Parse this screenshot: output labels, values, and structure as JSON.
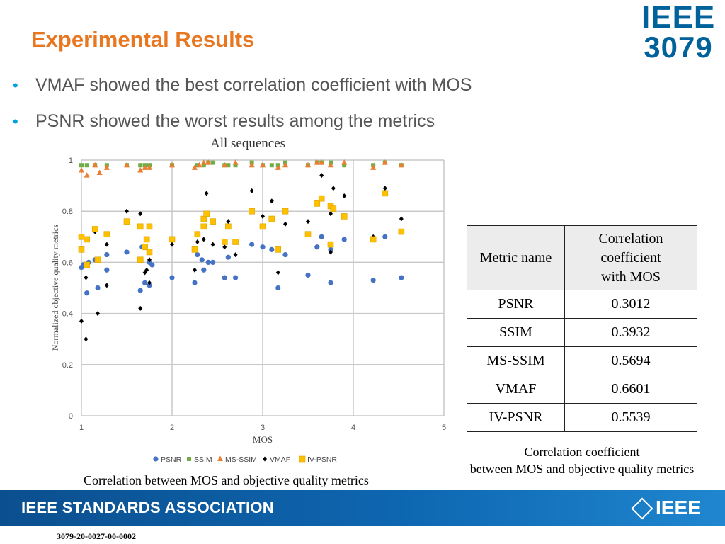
{
  "slide": {
    "title": "Experimental Results",
    "bullets": [
      "VMAF showed the best correlation coefficient with MOS",
      "PSNR showed the worst results among the metrics"
    ],
    "logo_line1": "IEEE",
    "logo_line2": "3079",
    "banner_text": "IEEE STANDARDS ASSOCIATION",
    "banner_logo": "IEEE",
    "footer_id": "3079-20-0027-00-0002",
    "colors": {
      "title": "#e87722",
      "bullet": "#00a3e0",
      "banner": "#0e66b0",
      "logo": "#00629b"
    }
  },
  "chart_data": {
    "type": "scatter",
    "title": "All sequences",
    "xlabel": "MOS",
    "ylabel": "Normalized objective quality metrics",
    "xlim": [
      1,
      5
    ],
    "ylim": [
      0,
      1
    ],
    "x_ticks": [
      1,
      2,
      3,
      4,
      5
    ],
    "y_ticks": [
      0,
      0.2,
      0.4,
      0.6,
      0.8,
      1
    ],
    "grid": true,
    "legend_position": "bottom",
    "caption": "Correlation between MOS and objective quality metrics",
    "series": [
      {
        "name": "PSNR",
        "marker": "circle",
        "color": "#4472c4",
        "points": [
          [
            1.0,
            0.58
          ],
          [
            1.02,
            0.59
          ],
          [
            1.06,
            0.48
          ],
          [
            1.08,
            0.6
          ],
          [
            1.15,
            0.61
          ],
          [
            1.18,
            0.5
          ],
          [
            1.28,
            0.63
          ],
          [
            1.28,
            0.57
          ],
          [
            1.5,
            0.64
          ],
          [
            1.65,
            0.49
          ],
          [
            1.67,
            0.66
          ],
          [
            1.7,
            0.52
          ],
          [
            1.75,
            0.51
          ],
          [
            1.75,
            0.6
          ],
          [
            1.78,
            0.59
          ],
          [
            2.0,
            0.54
          ],
          [
            2.25,
            0.52
          ],
          [
            2.28,
            0.63
          ],
          [
            2.33,
            0.61
          ],
          [
            2.35,
            0.57
          ],
          [
            2.4,
            0.6
          ],
          [
            2.45,
            0.6
          ],
          [
            2.58,
            0.54
          ],
          [
            2.62,
            0.62
          ],
          [
            2.7,
            0.54
          ],
          [
            2.88,
            0.67
          ],
          [
            3.0,
            0.66
          ],
          [
            3.1,
            0.65
          ],
          [
            3.17,
            0.5
          ],
          [
            3.25,
            0.63
          ],
          [
            3.5,
            0.55
          ],
          [
            3.6,
            0.66
          ],
          [
            3.65,
            0.7
          ],
          [
            3.75,
            0.52
          ],
          [
            3.75,
            0.65
          ],
          [
            3.9,
            0.69
          ],
          [
            4.22,
            0.53
          ],
          [
            4.35,
            0.7
          ],
          [
            4.53,
            0.54
          ]
        ]
      },
      {
        "name": "SSIM",
        "marker": "square",
        "color": "#70ad47",
        "points": [
          [
            1.0,
            0.98
          ],
          [
            1.06,
            0.98
          ],
          [
            1.15,
            0.98
          ],
          [
            1.28,
            0.98
          ],
          [
            1.5,
            0.98
          ],
          [
            1.65,
            0.98
          ],
          [
            1.7,
            0.98
          ],
          [
            1.75,
            0.98
          ],
          [
            2.0,
            0.98
          ],
          [
            2.28,
            0.98
          ],
          [
            2.35,
            0.98
          ],
          [
            2.4,
            0.99
          ],
          [
            2.45,
            0.99
          ],
          [
            2.58,
            0.98
          ],
          [
            2.62,
            0.98
          ],
          [
            2.7,
            0.98
          ],
          [
            2.88,
            0.99
          ],
          [
            3.0,
            0.98
          ],
          [
            3.1,
            0.98
          ],
          [
            3.17,
            0.98
          ],
          [
            3.25,
            0.99
          ],
          [
            3.5,
            0.98
          ],
          [
            3.6,
            0.99
          ],
          [
            3.65,
            0.99
          ],
          [
            3.75,
            0.99
          ],
          [
            3.9,
            0.98
          ],
          [
            4.22,
            0.98
          ],
          [
            4.35,
            0.99
          ],
          [
            4.53,
            0.98
          ]
        ]
      },
      {
        "name": "MS-SSIM",
        "marker": "triangle",
        "color": "#ed7d31",
        "points": [
          [
            1.0,
            0.96
          ],
          [
            1.06,
            0.94
          ],
          [
            1.15,
            0.98
          ],
          [
            1.2,
            0.95
          ],
          [
            1.28,
            0.97
          ],
          [
            1.5,
            0.98
          ],
          [
            1.65,
            0.96
          ],
          [
            1.7,
            0.97
          ],
          [
            1.75,
            0.97
          ],
          [
            2.0,
            0.98
          ],
          [
            2.25,
            0.97
          ],
          [
            2.3,
            0.98
          ],
          [
            2.35,
            0.99
          ],
          [
            2.4,
            0.99
          ],
          [
            2.58,
            0.98
          ],
          [
            2.7,
            0.99
          ],
          [
            2.88,
            0.98
          ],
          [
            3.0,
            0.98
          ],
          [
            3.17,
            0.97
          ],
          [
            3.25,
            0.98
          ],
          [
            3.5,
            0.98
          ],
          [
            3.6,
            0.99
          ],
          [
            3.65,
            0.99
          ],
          [
            3.75,
            0.98
          ],
          [
            3.9,
            0.99
          ],
          [
            4.22,
            0.97
          ],
          [
            4.35,
            0.99
          ],
          [
            4.53,
            0.98
          ]
        ]
      },
      {
        "name": "VMAF",
        "marker": "diamond",
        "color": "#000000",
        "points": [
          [
            1.0,
            0.37
          ],
          [
            1.05,
            0.3
          ],
          [
            1.05,
            0.54
          ],
          [
            1.15,
            0.72
          ],
          [
            1.18,
            0.4
          ],
          [
            1.28,
            0.51
          ],
          [
            1.28,
            0.67
          ],
          [
            1.5,
            0.8
          ],
          [
            1.65,
            0.42
          ],
          [
            1.65,
            0.79
          ],
          [
            1.7,
            0.56
          ],
          [
            1.72,
            0.57
          ],
          [
            1.75,
            0.52
          ],
          [
            1.75,
            0.61
          ],
          [
            2.0,
            0.67
          ],
          [
            2.25,
            0.57
          ],
          [
            2.28,
            0.68
          ],
          [
            2.35,
            0.69
          ],
          [
            2.38,
            0.87
          ],
          [
            2.45,
            0.67
          ],
          [
            2.58,
            0.66
          ],
          [
            2.62,
            0.76
          ],
          [
            2.7,
            0.63
          ],
          [
            2.88,
            0.88
          ],
          [
            3.0,
            0.78
          ],
          [
            3.1,
            0.84
          ],
          [
            3.17,
            0.56
          ],
          [
            3.25,
            0.75
          ],
          [
            3.5,
            0.76
          ],
          [
            3.6,
            0.83
          ],
          [
            3.65,
            0.94
          ],
          [
            3.75,
            0.64
          ],
          [
            3.75,
            0.79
          ],
          [
            3.78,
            0.89
          ],
          [
            3.9,
            0.86
          ],
          [
            4.22,
            0.7
          ],
          [
            4.35,
            0.89
          ],
          [
            4.53,
            0.77
          ]
        ]
      },
      {
        "name": "IV-PSNR",
        "marker": "square",
        "color": "#ffc000",
        "points": [
          [
            1.0,
            0.7
          ],
          [
            1.0,
            0.65
          ],
          [
            1.06,
            0.69
          ],
          [
            1.06,
            0.59
          ],
          [
            1.15,
            0.73
          ],
          [
            1.18,
            0.61
          ],
          [
            1.28,
            0.71
          ],
          [
            1.5,
            0.76
          ],
          [
            1.65,
            0.74
          ],
          [
            1.65,
            0.61
          ],
          [
            1.7,
            0.66
          ],
          [
            1.72,
            0.69
          ],
          [
            1.75,
            0.74
          ],
          [
            1.75,
            0.64
          ],
          [
            2.0,
            0.69
          ],
          [
            2.25,
            0.65
          ],
          [
            2.28,
            0.71
          ],
          [
            2.35,
            0.77
          ],
          [
            2.35,
            0.74
          ],
          [
            2.38,
            0.79
          ],
          [
            2.45,
            0.76
          ],
          [
            2.58,
            0.68
          ],
          [
            2.62,
            0.74
          ],
          [
            2.7,
            0.68
          ],
          [
            2.88,
            0.8
          ],
          [
            3.0,
            0.74
          ],
          [
            3.1,
            0.77
          ],
          [
            3.17,
            0.65
          ],
          [
            3.25,
            0.8
          ],
          [
            3.5,
            0.71
          ],
          [
            3.6,
            0.83
          ],
          [
            3.65,
            0.85
          ],
          [
            3.75,
            0.67
          ],
          [
            3.75,
            0.82
          ],
          [
            3.78,
            0.81
          ],
          [
            3.9,
            0.78
          ],
          [
            4.22,
            0.69
          ],
          [
            4.35,
            0.87
          ],
          [
            4.53,
            0.72
          ]
        ]
      }
    ]
  },
  "table": {
    "header": {
      "col1": "Metric name",
      "col2_line1": "Correlation",
      "col2_line2": "coefficient",
      "col2_line3": "with MOS"
    },
    "rows": [
      {
        "metric": "PSNR",
        "value": "0.3012"
      },
      {
        "metric": "SSIM",
        "value": "0.3932"
      },
      {
        "metric": "MS-SSIM",
        "value": "0.5694"
      },
      {
        "metric": "VMAF",
        "value": "0.6601"
      },
      {
        "metric": "IV-PSNR",
        "value": "0.5539"
      }
    ],
    "caption_line1": "Correlation coefficient",
    "caption_line2": "between MOS and objective quality metrics"
  }
}
